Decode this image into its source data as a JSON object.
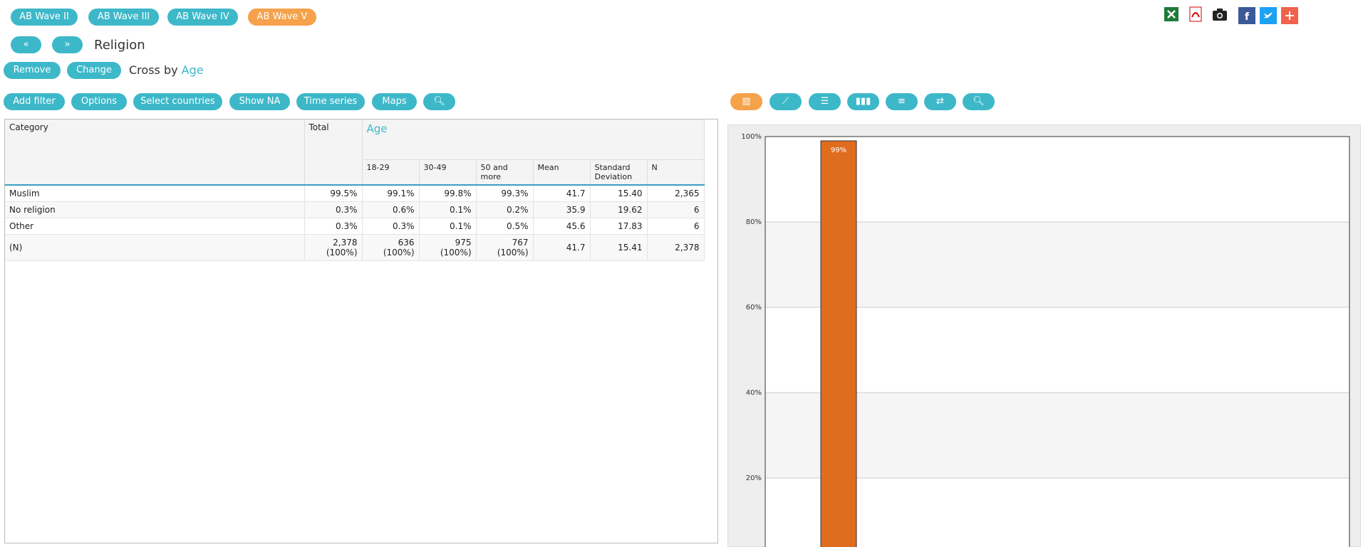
{
  "waves": [
    "AB Wave II",
    "AB Wave III",
    "AB Wave IV",
    "AB Wave V"
  ],
  "title": "Religion",
  "actions": [
    "Remove",
    "Change"
  ],
  "cross_label": "Cross by",
  "cross_var": "Age",
  "toolbar": [
    "Add filter",
    "Options",
    "Select countries",
    "Show NA",
    "Time series",
    "Maps"
  ],
  "table": {
    "headers": [
      "Category",
      "Total"
    ],
    "group": "Age",
    "subheaders": [
      "18-29",
      "30-49",
      "50 and more",
      "Mean",
      "Standard Deviation",
      "N"
    ],
    "rows": [
      [
        "Muslim",
        "99.5%",
        "99.1%",
        "99.8%",
        "99.3%",
        "41.7",
        "15.40",
        "2,365"
      ],
      [
        "No religion",
        "0.3%",
        "0.6%",
        "0.1%",
        "0.2%",
        "35.9",
        "19.62",
        "6"
      ],
      [
        "Other",
        "0.3%",
        "0.3%",
        "0.1%",
        "0.5%",
        "45.6",
        "17.83",
        "6"
      ],
      [
        "(N)",
        "2,378 (100%)",
        "636 (100%)",
        "975 (100%)",
        "767 (100%)",
        "41.7",
        "15.41",
        "2,378"
      ]
    ]
  },
  "chart_data": {
    "type": "bar",
    "categories": [
      null
    ],
    "values": [
      99
    ],
    "value_labels": [
      "99%"
    ],
    "color": "#e06c1f",
    "ylim": [
      0,
      100
    ],
    "yticks": [
      {
        "value": 20,
        "label": "20%"
      },
      {
        "value": 40,
        "label": "40%"
      },
      {
        "value": 60,
        "label": "60%"
      },
      {
        "value": 80,
        "label": "80%"
      },
      {
        "value": 100,
        "label": "100%"
      }
    ],
    "grid": true
  }
}
